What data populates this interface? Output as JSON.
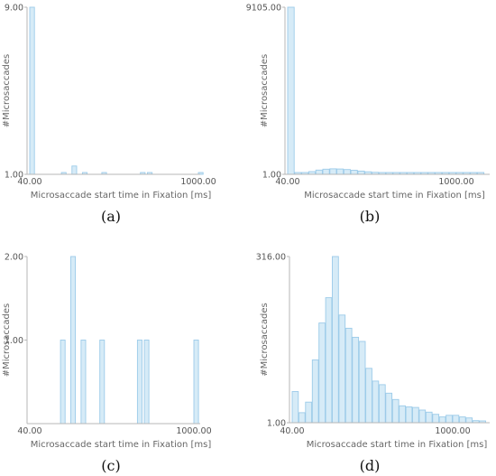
{
  "chart_data": [
    {
      "type": "bar",
      "panel_label": "(a)",
      "xlabel": "Microsaccade start time in Fixation [ms]",
      "ylabel": "#Microsaccades",
      "x_ticks": [
        "40.00",
        "1000.00"
      ],
      "y_ticks": [
        "1.00",
        "9.00"
      ],
      "ylim": [
        1,
        9
      ],
      "bin_width": 30,
      "bars": [
        {
          "x": 40,
          "value": 9
        },
        {
          "x": 220,
          "value": 1
        },
        {
          "x": 280,
          "value": 1.4
        },
        {
          "x": 340,
          "value": 1
        },
        {
          "x": 450,
          "value": 1
        },
        {
          "x": 670,
          "value": 1
        },
        {
          "x": 710,
          "value": 1
        },
        {
          "x": 1000,
          "value": 1
        }
      ]
    },
    {
      "type": "bar",
      "panel_label": "(b)",
      "xlabel": "Microsaccade start time in Fixation [ms]",
      "ylabel": "#Microsaccades",
      "x_ticks": [
        "40.00",
        "1000.00"
      ],
      "y_ticks": [
        "1.00",
        "9105.00"
      ],
      "ylim": [
        1,
        9105
      ],
      "bin_width": 40,
      "bars": [
        {
          "x": 40,
          "value": 9105
        },
        {
          "x": 80,
          "value": 60
        },
        {
          "x": 120,
          "value": 90
        },
        {
          "x": 160,
          "value": 150
        },
        {
          "x": 200,
          "value": 230
        },
        {
          "x": 240,
          "value": 280
        },
        {
          "x": 280,
          "value": 300
        },
        {
          "x": 320,
          "value": 290
        },
        {
          "x": 360,
          "value": 260
        },
        {
          "x": 400,
          "value": 220
        },
        {
          "x": 440,
          "value": 180
        },
        {
          "x": 480,
          "value": 140
        },
        {
          "x": 520,
          "value": 110
        },
        {
          "x": 560,
          "value": 90
        },
        {
          "x": 600,
          "value": 75
        },
        {
          "x": 640,
          "value": 60
        },
        {
          "x": 680,
          "value": 50
        },
        {
          "x": 720,
          "value": 45
        },
        {
          "x": 760,
          "value": 40
        },
        {
          "x": 800,
          "value": 35
        },
        {
          "x": 840,
          "value": 30
        },
        {
          "x": 880,
          "value": 30
        },
        {
          "x": 920,
          "value": 28
        },
        {
          "x": 960,
          "value": 25
        },
        {
          "x": 1000,
          "value": 22
        },
        {
          "x": 1040,
          "value": 20
        },
        {
          "x": 1080,
          "value": 18
        },
        {
          "x": 1120,
          "value": 16
        }
      ]
    },
    {
      "type": "bar",
      "panel_label": "(c)",
      "xlabel": "Microsaccade start time in Fixation [ms]",
      "ylabel": "#Microsaccades",
      "x_ticks": [
        "40.00",
        "1000.00"
      ],
      "y_ticks": [
        "1.00",
        "2.00"
      ],
      "ylim": [
        0,
        2
      ],
      "bin_width": 30,
      "bars": [
        {
          "x": 220,
          "value": 1
        },
        {
          "x": 280,
          "value": 2
        },
        {
          "x": 340,
          "value": 1
        },
        {
          "x": 450,
          "value": 1
        },
        {
          "x": 670,
          "value": 1
        },
        {
          "x": 710,
          "value": 1
        },
        {
          "x": 1000,
          "value": 1
        }
      ]
    },
    {
      "type": "bar",
      "panel_label": "(d)",
      "xlabel": "Microsaccade start time in Fixation [ms]",
      "ylabel": "#Microsaccades",
      "x_ticks": [
        "40.00",
        "1000.00"
      ],
      "y_ticks": [
        "1.00",
        "316.00"
      ],
      "ylim": [
        1,
        316
      ],
      "bin_width": 40,
      "bars": [
        {
          "x": 40,
          "value": 60
        },
        {
          "x": 80,
          "value": 20
        },
        {
          "x": 120,
          "value": 40
        },
        {
          "x": 160,
          "value": 120
        },
        {
          "x": 200,
          "value": 190
        },
        {
          "x": 240,
          "value": 238
        },
        {
          "x": 280,
          "value": 316
        },
        {
          "x": 320,
          "value": 205
        },
        {
          "x": 360,
          "value": 180
        },
        {
          "x": 400,
          "value": 163
        },
        {
          "x": 440,
          "value": 155
        },
        {
          "x": 480,
          "value": 104
        },
        {
          "x": 520,
          "value": 80
        },
        {
          "x": 560,
          "value": 73
        },
        {
          "x": 600,
          "value": 57
        },
        {
          "x": 640,
          "value": 45
        },
        {
          "x": 680,
          "value": 33
        },
        {
          "x": 720,
          "value": 31
        },
        {
          "x": 760,
          "value": 30
        },
        {
          "x": 800,
          "value": 25
        },
        {
          "x": 840,
          "value": 21
        },
        {
          "x": 880,
          "value": 17
        },
        {
          "x": 920,
          "value": 12
        },
        {
          "x": 960,
          "value": 15
        },
        {
          "x": 1000,
          "value": 15
        },
        {
          "x": 1040,
          "value": 12
        },
        {
          "x": 1080,
          "value": 10
        },
        {
          "x": 1120,
          "value": 5
        },
        {
          "x": 1160,
          "value": 3
        }
      ]
    }
  ]
}
